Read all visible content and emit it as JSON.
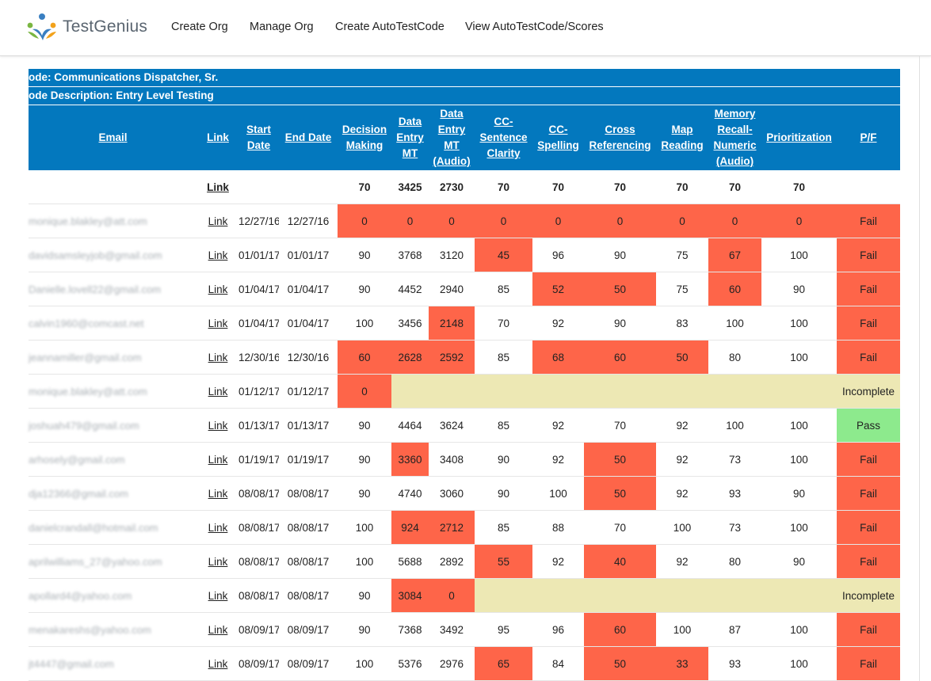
{
  "app": {
    "logo_text": "TestGenius",
    "nav": [
      {
        "label": "Create Org"
      },
      {
        "label": "Manage Org"
      },
      {
        "label": "Create AutoTestCode"
      },
      {
        "label": "View AutoTestCode/Scores"
      }
    ]
  },
  "report": {
    "code_line": "ode: Communications Dispatcher, Sr.",
    "description_line": "ode Description: Entry Level Testing",
    "columns": [
      "Email",
      "Link",
      "Start Date",
      "End Date",
      "Decision Making",
      "Data Entry MT",
      "Data Entry MT (Audio)",
      "CC-Sentence Clarity",
      "CC-Spelling",
      "Cross Referencing",
      "Map Reading",
      "Memory Recall-Numeric (Audio)",
      "Prioritization",
      "P/F"
    ],
    "thresholds": {
      "link": "Link",
      "values": [
        "70",
        "3425",
        "2730",
        "70",
        "70",
        "70",
        "70",
        "70",
        "70"
      ]
    },
    "colors": {
      "header_blue": "#0378be",
      "fail_red": "#fe6549",
      "pass_green": "#8dea8d",
      "incomplete_cream": "#ede8b4"
    },
    "rows": [
      {
        "email": "monique.blakley@att.com",
        "link": "Link",
        "start": "12/27/16",
        "end": "12/27/16",
        "scores": [
          "0",
          "0",
          "0",
          "0",
          "0",
          "0",
          "0",
          "0",
          "0"
        ],
        "fail": [
          1,
          1,
          1,
          1,
          1,
          1,
          1,
          1,
          1
        ],
        "result": "Fail",
        "status": "fail",
        "incomplete_from": -1
      },
      {
        "email": "davidsamsleyjob@gmail.com",
        "link": "Link",
        "start": "01/01/17",
        "end": "01/01/17",
        "scores": [
          "90",
          "3768",
          "3120",
          "45",
          "96",
          "90",
          "75",
          "67",
          "100"
        ],
        "fail": [
          0,
          0,
          0,
          1,
          0,
          0,
          0,
          1,
          0
        ],
        "result": "Fail",
        "status": "fail",
        "incomplete_from": -1
      },
      {
        "email": "Danielle.lovell22@gmail.com",
        "link": "Link",
        "start": "01/04/17",
        "end": "01/04/17",
        "scores": [
          "90",
          "4452",
          "2940",
          "85",
          "52",
          "50",
          "75",
          "60",
          "90"
        ],
        "fail": [
          0,
          0,
          0,
          0,
          1,
          1,
          0,
          1,
          0
        ],
        "result": "Fail",
        "status": "fail",
        "incomplete_from": -1
      },
      {
        "email": "calvin1960@comcast.net",
        "link": "Link",
        "start": "01/04/17",
        "end": "01/04/17",
        "scores": [
          "100",
          "3456",
          "2148",
          "70",
          "92",
          "90",
          "83",
          "100",
          "100"
        ],
        "fail": [
          0,
          0,
          1,
          0,
          0,
          0,
          0,
          0,
          0
        ],
        "result": "Fail",
        "status": "fail",
        "incomplete_from": -1
      },
      {
        "email": "jeannamiller@gmail.com",
        "link": "Link",
        "start": "12/30/16",
        "end": "12/30/16",
        "scores": [
          "60",
          "2628",
          "2592",
          "85",
          "68",
          "60",
          "50",
          "80",
          "100"
        ],
        "fail": [
          1,
          1,
          1,
          0,
          1,
          1,
          1,
          0,
          0
        ],
        "result": "Fail",
        "status": "fail",
        "incomplete_from": -1
      },
      {
        "email": "monique.blakley@att.com",
        "link": "Link",
        "start": "01/12/17",
        "end": "01/12/17",
        "scores": [
          "0"
        ],
        "fail": [
          1
        ],
        "result": "Incomplete",
        "status": "incomplete",
        "incomplete_from": 1
      },
      {
        "email": "joshuah479@gmail.com",
        "link": "Link",
        "start": "01/13/17",
        "end": "01/13/17",
        "scores": [
          "90",
          "4464",
          "3624",
          "85",
          "92",
          "70",
          "92",
          "100",
          "100"
        ],
        "fail": [
          0,
          0,
          0,
          0,
          0,
          0,
          0,
          0,
          0
        ],
        "result": "Pass",
        "status": "pass",
        "incomplete_from": -1
      },
      {
        "email": "arhosely@gmail.com",
        "link": "Link",
        "start": "01/19/17",
        "end": "01/19/17",
        "scores": [
          "90",
          "3360",
          "3408",
          "90",
          "92",
          "50",
          "92",
          "73",
          "100"
        ],
        "fail": [
          0,
          1,
          0,
          0,
          0,
          1,
          0,
          0,
          0
        ],
        "result": "Fail",
        "status": "fail",
        "incomplete_from": -1
      },
      {
        "email": "dja12366@gmail.com",
        "link": "Link",
        "start": "08/08/17",
        "end": "08/08/17",
        "scores": [
          "90",
          "4740",
          "3060",
          "90",
          "100",
          "50",
          "92",
          "93",
          "90"
        ],
        "fail": [
          0,
          0,
          0,
          0,
          0,
          1,
          0,
          0,
          0
        ],
        "result": "Fail",
        "status": "fail",
        "incomplete_from": -1
      },
      {
        "email": "danielcrandall@hotmail.com",
        "link": "Link",
        "start": "08/08/17",
        "end": "08/08/17",
        "scores": [
          "100",
          "924",
          "2712",
          "85",
          "88",
          "70",
          "100",
          "73",
          "100"
        ],
        "fail": [
          0,
          1,
          1,
          0,
          0,
          0,
          0,
          0,
          0
        ],
        "result": "Fail",
        "status": "fail",
        "incomplete_from": -1
      },
      {
        "email": "aprilwilliams_27@yahoo.com",
        "link": "Link",
        "start": "08/08/17",
        "end": "08/08/17",
        "scores": [
          "100",
          "5688",
          "2892",
          "55",
          "92",
          "40",
          "92",
          "80",
          "90"
        ],
        "fail": [
          0,
          0,
          0,
          1,
          0,
          1,
          0,
          0,
          0
        ],
        "result": "Fail",
        "status": "fail",
        "incomplete_from": -1
      },
      {
        "email": "apollard4@yahoo.com",
        "link": "Link",
        "start": "08/08/17",
        "end": "08/08/17",
        "scores": [
          "90",
          "3084",
          "0"
        ],
        "fail": [
          0,
          1,
          1
        ],
        "result": "Incomplete",
        "status": "incomplete",
        "incomplete_from": 3
      },
      {
        "email": "menakareshs@yahoo.com",
        "link": "Link",
        "start": "08/09/17",
        "end": "08/09/17",
        "scores": [
          "90",
          "7368",
          "3492",
          "95",
          "96",
          "60",
          "100",
          "87",
          "100"
        ],
        "fail": [
          0,
          0,
          0,
          0,
          0,
          1,
          0,
          0,
          0
        ],
        "result": "Fail",
        "status": "fail",
        "incomplete_from": -1
      },
      {
        "email": "jt4447@gmail.com",
        "link": "Link",
        "start": "08/09/17",
        "end": "08/09/17",
        "scores": [
          "100",
          "5376",
          "2976",
          "65",
          "84",
          "50",
          "33",
          "93",
          "100"
        ],
        "fail": [
          0,
          0,
          0,
          1,
          0,
          1,
          1,
          0,
          0
        ],
        "result": "Fail",
        "status": "fail",
        "incomplete_from": -1
      }
    ]
  }
}
